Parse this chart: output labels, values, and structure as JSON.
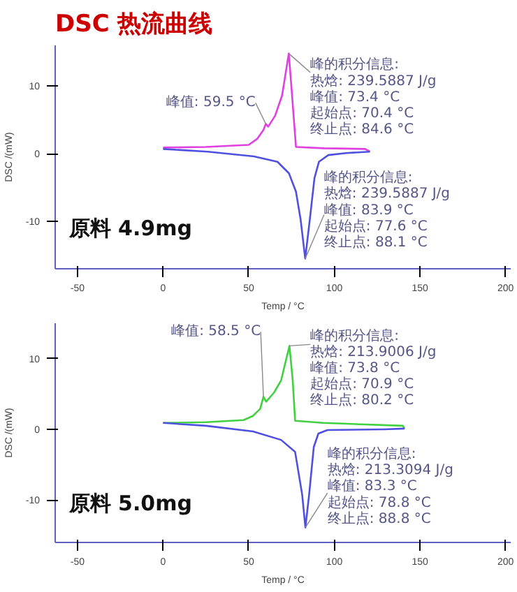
{
  "chart_data": [
    {
      "type": "line",
      "title": "DSC 热流曲线",
      "xlabel": "Temp / °C",
      "ylabel": "DSC /(mW)",
      "xlim": [
        -63,
        203
      ],
      "ylim": [
        -17,
        16
      ],
      "xticks": [
        -50,
        0,
        50,
        100,
        150,
        200
      ],
      "yticks": [
        -10,
        0,
        10
      ],
      "marker": "none",
      "line_style": "solid",
      "series": [
        {
          "color": "#e040e0",
          "x": [
            0,
            25,
            50,
            55,
            58.6,
            60,
            61.4,
            65.4,
            69.5,
            73.4,
            74.9,
            77.6,
            93.8,
            118,
            120.8
          ],
          "values": [
            0.9,
            1.0,
            1.3,
            2.2,
            3.5,
            4.4,
            4.0,
            5.6,
            8.6,
            14.8,
            10,
            1.0,
            0.8,
            0.7,
            0.3
          ]
        },
        {
          "color": "#5050e0",
          "x": [
            120.8,
            107,
            96.5,
            91,
            88.4,
            85.7,
            83,
            80.3,
            77.6,
            73.5,
            66.8,
            53,
            26,
            0
          ],
          "values": [
            0.3,
            0.1,
            -0.2,
            -1.2,
            -3.6,
            -9.7,
            -15.5,
            -9.7,
            -5.6,
            -2.9,
            -1.2,
            -0.4,
            0.3,
            0.7
          ]
        }
      ],
      "annotations": [
        {
          "text": "峰的积分信息:\n热焓: 239.5887 J/g\n峰值: 73.4 °C\n起始点: 70.4 °C\n终止点: 84.6 °C",
          "x": 73.4,
          "y": 14.8
        },
        {
          "text": "峰值: 59.5 °C",
          "x": 60,
          "y": 4.4
        },
        {
          "text": "峰的积分信息:\n热焓: 239.5887 J/g\n峰值: 83.9 °C\n起始点: 77.6 °C\n终止点: 88.1 °C",
          "x": 83,
          "y": -15.5
        },
        "原料    4.9mg"
      ]
    },
    {
      "type": "line",
      "xlabel": "Temp / °C",
      "ylabel": "DSC /(mW)",
      "xlim": [
        -63,
        203
      ],
      "ylim": [
        -16,
        15
      ],
      "xticks": [
        -50,
        0,
        50,
        100,
        150,
        200
      ],
      "yticks": [
        -10,
        0,
        10
      ],
      "marker": "none",
      "line_style": "solid",
      "series": [
        {
          "color": "#40d040",
          "x": [
            0,
            25,
            47,
            52.5,
            56.7,
            58.6,
            60.2,
            64.8,
            68.9,
            73.8,
            75.7,
            77.1,
            93.5,
            140,
            141
          ],
          "values": [
            0.9,
            1.0,
            1.3,
            1.9,
            2.9,
            4.6,
            3.9,
            5.2,
            6.9,
            11.8,
            6.9,
            1.2,
            0.9,
            0.5,
            0.1
          ]
        },
        {
          "color": "#5050e0",
          "x": [
            141,
            129,
            96,
            90.7,
            88,
            85.3,
            83.1,
            81.2,
            77.1,
            68.9,
            52.5,
            25,
            0
          ],
          "values": [
            0.1,
            0,
            -0.1,
            -0.6,
            -2.5,
            -9.2,
            -13.9,
            -9.2,
            -3.2,
            -1.5,
            -0.3,
            0.5,
            0.9
          ]
        }
      ],
      "annotations": [
        {
          "text": "峰值: 58.5 °C",
          "x": 58.6,
          "y": 4.6
        },
        {
          "text": "峰的积分信息:\n热焓: 213.9006 J/g\n峰值: 73.8 °C\n起始点: 70.9 °C\n终止点: 80.2 °C",
          "x": 73.8,
          "y": 11.8
        },
        {
          "text": "峰的积分信息:\n热焓: 213.3094 J/g\n峰值: 83.3 °C\n起始点: 78.8 °C\n终止点: 88.8 °C",
          "x": 83.1,
          "y": -13.9
        },
        "原料    5.0mg"
      ]
    }
  ]
}
